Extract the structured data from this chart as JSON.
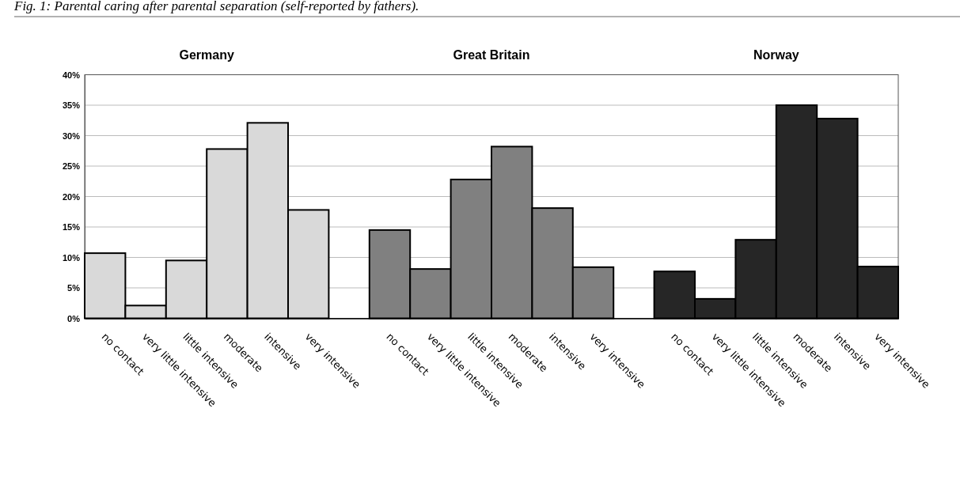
{
  "chart_data": {
    "type": "bar",
    "annotations": [
      "Fig. 1: Parental caring after parental separation (self-reported by fathers).",
      "Germany",
      "Great Britain",
      "Norway"
    ],
    "categories": [
      "no contact",
      "very little intensive",
      "little intensive",
      "moderate",
      "intensive",
      "very intensive",
      null,
      "no contact",
      "very little intensive",
      "little intensive",
      "moderate",
      "intensive",
      "very intensive",
      null,
      "no contact",
      "very little intensive",
      "little intensive",
      "moderate",
      "intensive",
      "very intensive"
    ],
    "values": [
      10.7,
      2.1,
      9.5,
      27.8,
      32.1,
      17.8,
      null,
      14.5,
      8.1,
      22.8,
      28.2,
      18.1,
      8.4,
      null,
      7.7,
      3.2,
      12.9,
      35,
      32.8,
      8.5
    ],
    "colors": [
      "#d9d9d9",
      "#d9d9d9",
      "#d9d9d9",
      "#d9d9d9",
      "#d9d9d9",
      "#d9d9d9",
      null,
      "#808080",
      "#808080",
      "#808080",
      "#808080",
      "#808080",
      "#808080",
      null,
      "#262626",
      "#262626",
      "#262626",
      "#262626",
      "#262626",
      "#262626"
    ],
    "ylim": [
      0,
      40
    ],
    "yticks": [
      {
        "value": 0,
        "label": "0%"
      },
      {
        "value": 5,
        "label": "5%"
      },
      {
        "value": 10,
        "label": "10%"
      },
      {
        "value": 15,
        "label": "15%"
      },
      {
        "value": 20,
        "label": "20%"
      },
      {
        "value": 25,
        "label": "25%"
      },
      {
        "value": 30,
        "label": "30%"
      },
      {
        "value": 35,
        "label": "35%"
      },
      {
        "value": 40,
        "label": "40%"
      }
    ],
    "grid": "y"
  }
}
